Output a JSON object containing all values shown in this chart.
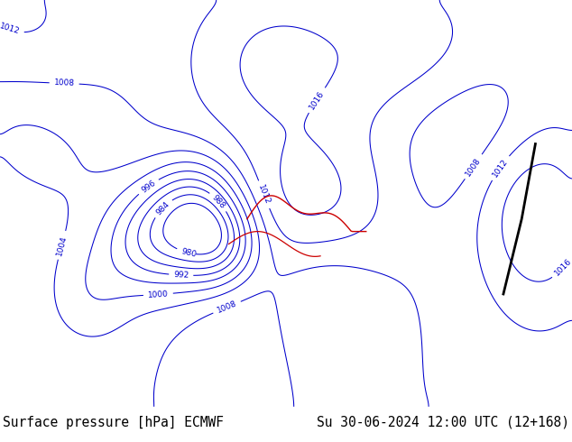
{
  "title_left": "Surface pressure [hPa] ECMWF",
  "title_right": "Su 30-06-2024 12:00 UTC (12+168)",
  "text_color": "#000000",
  "footer_fontsize": 10.5,
  "isobar_color_blue": "#0000cc",
  "isobar_color_red": "#cc0000",
  "isobar_color_black": "#000000",
  "label_fontsize": 6.5,
  "fig_width": 6.34,
  "fig_height": 4.9,
  "dpi": 100,
  "map_extent": [
    20,
    145,
    0,
    65
  ],
  "ocean_color": "#b8d8e8",
  "land_color": "#d8e8c0",
  "border_color": "#888888",
  "coast_color": "#666666"
}
